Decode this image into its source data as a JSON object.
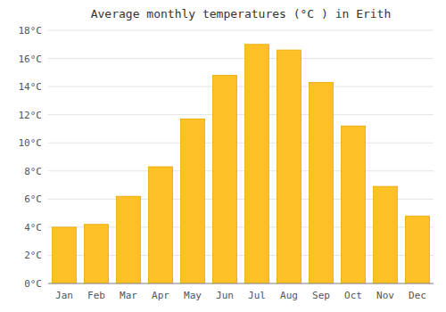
{
  "chart_data": {
    "type": "bar",
    "title": "Average monthly temperatures (°C ) in Erith",
    "categories": [
      "Jan",
      "Feb",
      "Mar",
      "Apr",
      "May",
      "Jun",
      "Jul",
      "Aug",
      "Sep",
      "Oct",
      "Nov",
      "Dec"
    ],
    "values": [
      4.0,
      4.2,
      6.2,
      8.3,
      11.7,
      14.8,
      17.0,
      16.6,
      14.3,
      11.2,
      6.9,
      4.8
    ],
    "color": "#FFC125",
    "ylim": [
      0,
      18
    ],
    "yticks": [
      {
        "value": 0,
        "label": "0°C"
      },
      {
        "value": 2,
        "label": "2°C"
      },
      {
        "value": 4,
        "label": "4°C"
      },
      {
        "value": 6,
        "label": "6°C"
      },
      {
        "value": 8,
        "label": "8°C"
      },
      {
        "value": 10,
        "label": "10°C"
      },
      {
        "value": 12,
        "label": "12°C"
      },
      {
        "value": 14,
        "label": "14°C"
      },
      {
        "value": 16,
        "label": "16°C"
      },
      {
        "value": 18,
        "label": "18°C"
      }
    ],
    "grid": true
  }
}
